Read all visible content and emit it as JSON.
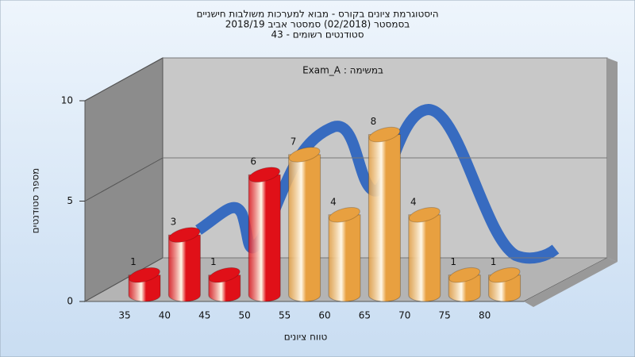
{
  "chart_data": {
    "type": "bar3d",
    "title": [
      "היסטוגרמת ציונים בקורס - מבוא למערכות משולבות חישניים",
      "בסמסטר (02/2018) סמסטר אביב 2018/19",
      "סטודנטים רשומים - 43"
    ],
    "annotation": "Exam_A : במשימה",
    "xlabel": "טווח ציונים",
    "ylabel": "מספר סטודנטים",
    "categories": [
      "35",
      "40",
      "45",
      "50",
      "55",
      "60",
      "65",
      "70",
      "75",
      "80"
    ],
    "values": [
      1,
      3,
      1,
      6,
      7,
      4,
      8,
      4,
      1,
      1
    ],
    "colors": [
      "#e01018",
      "#e01018",
      "#e01018",
      "#e01018",
      "#e8a040",
      "#e8a040",
      "#e8a040",
      "#e8a040",
      "#e8a040",
      "#e8a040"
    ],
    "ylim": [
      0,
      10
    ],
    "yticks": [
      0,
      5,
      10
    ],
    "grid": true
  }
}
